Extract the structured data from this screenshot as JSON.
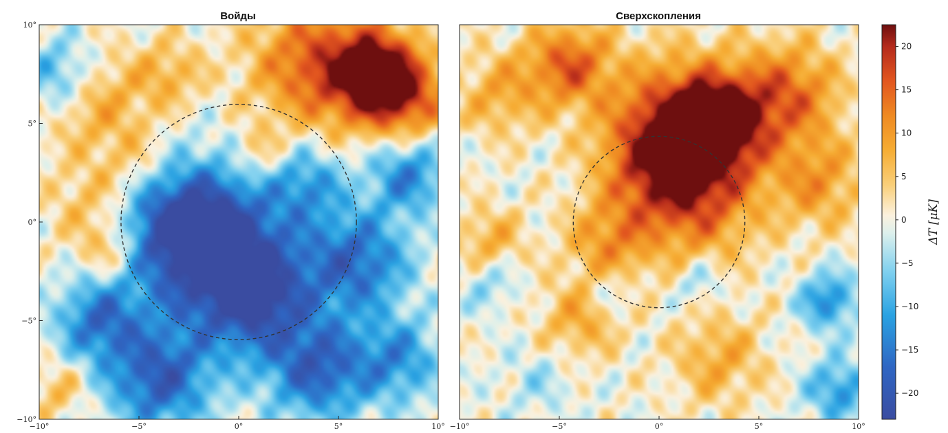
{
  "chart_data": [
    {
      "type": "heatmap",
      "title": "Войды",
      "x_ticks": [
        "−10°",
        "−5°",
        "0°",
        "5°",
        "10°"
      ],
      "y_ticks": [
        "10°",
        "5°",
        "0°",
        "−5°",
        "−10°"
      ],
      "x_range": [
        -10,
        10
      ],
      "y_range": [
        -10,
        10
      ],
      "circle_radius_deg": 5.9,
      "temperature_features": [
        {
          "x": 7,
          "y": 7.5,
          "dT": 22,
          "sigma": 1.5
        },
        {
          "x": 4,
          "y": 8,
          "dT": 16,
          "sigma": 2.3
        },
        {
          "x": 8.5,
          "y": 6,
          "dT": 12,
          "sigma": 1.6
        },
        {
          "x": -7,
          "y": 6,
          "dT": 8,
          "sigma": 1.8
        },
        {
          "x": -3.5,
          "y": 7.5,
          "dT": 7,
          "sigma": 1.2
        },
        {
          "x": -7.5,
          "y": 1,
          "dT": 6,
          "sigma": 1.5
        },
        {
          "x": -6.5,
          "y": -1.5,
          "dT": 8,
          "sigma": 1.1
        },
        {
          "x": 1,
          "y": 3.5,
          "dT": 6,
          "sigma": 1.0
        },
        {
          "x": -5,
          "y": 3,
          "dT": 5,
          "sigma": 1.3
        },
        {
          "x": -9,
          "y": -8.5,
          "dT": 6,
          "sigma": 1.0
        },
        {
          "x": -1,
          "y": -1.5,
          "dT": -22,
          "sigma": 2.8
        },
        {
          "x": -3,
          "y": 0,
          "dT": -14,
          "sigma": 2.0
        },
        {
          "x": 1,
          "y": -4,
          "dT": -14,
          "sigma": 2.0
        },
        {
          "x": -4,
          "y": -8,
          "dT": -18,
          "sigma": 1.8
        },
        {
          "x": 6,
          "y": -2,
          "dT": -16,
          "sigma": 1.8
        },
        {
          "x": 4,
          "y": -7.5,
          "dT": -17,
          "sigma": 1.8
        },
        {
          "x": 8.5,
          "y": 2.5,
          "dT": -14,
          "sigma": 1.4
        },
        {
          "x": -7,
          "y": -5,
          "dT": -15,
          "sigma": 1.5
        },
        {
          "x": 8,
          "y": -7,
          "dT": -12,
          "sigma": 1.5
        },
        {
          "x": 3.5,
          "y": 2,
          "dT": -10,
          "sigma": 1.3
        },
        {
          "x": -9,
          "y": 7.5,
          "dT": -10,
          "sigma": 1.3
        }
      ]
    },
    {
      "type": "heatmap",
      "title": "Сверхскопления",
      "x_ticks": [
        "−10°",
        "−5°",
        "0°",
        "5°",
        "10°"
      ],
      "y_ticks": [],
      "x_range": [
        -10,
        10
      ],
      "y_range": [
        -10,
        10
      ],
      "circle_radius_deg": 4.3,
      "temperature_features": [
        {
          "x": 3,
          "y": 5,
          "dT": 21,
          "sigma": 1.6
        },
        {
          "x": 1,
          "y": 5,
          "dT": 16,
          "sigma": 2.4
        },
        {
          "x": -4.5,
          "y": 8,
          "dT": 15,
          "sigma": 1.5
        },
        {
          "x": 6.5,
          "y": 6.5,
          "dT": 14,
          "sigma": 1.8
        },
        {
          "x": 2,
          "y": 1,
          "dT": 12,
          "sigma": 2.2
        },
        {
          "x": 0,
          "y": 3,
          "dT": 12,
          "sigma": 2.0
        },
        {
          "x": -8,
          "y": 6.5,
          "dT": 8,
          "sigma": 1.5
        },
        {
          "x": -2.5,
          "y": -1,
          "dT": 10,
          "sigma": 1.5
        },
        {
          "x": -8.5,
          "y": -1,
          "dT": 8,
          "sigma": 1.2
        },
        {
          "x": -4,
          "y": -5,
          "dT": 8,
          "sigma": 1.4
        },
        {
          "x": 3,
          "y": -7,
          "dT": 8,
          "sigma": 1.6
        },
        {
          "x": 8,
          "y": 2,
          "dT": 10,
          "sigma": 1.6
        },
        {
          "x": 8.5,
          "y": -4,
          "dT": -13,
          "sigma": 1.0
        },
        {
          "x": 9,
          "y": -8.5,
          "dT": -12,
          "sigma": 1.1
        },
        {
          "x": 2,
          "y": -3,
          "dT": -6,
          "sigma": 0.8
        },
        {
          "x": -2.5,
          "y": -3.5,
          "dT": -5,
          "sigma": 0.8
        },
        {
          "x": -8.5,
          "y": -3,
          "dT": -6,
          "sigma": 1.0
        },
        {
          "x": -6,
          "y": -8,
          "dT": -4,
          "sigma": 1.2
        }
      ]
    }
  ],
  "colorbar": {
    "label": "ΔT [μK]",
    "range": [
      -23,
      22.5
    ],
    "ticks": [
      20,
      15,
      10,
      5,
      0,
      -5,
      -10,
      -15,
      -20
    ],
    "tick_labels": [
      "20",
      "15",
      "10",
      "5",
      "0",
      "−5",
      "−10",
      "−15",
      "−20"
    ],
    "colors": [
      {
        "v": -23,
        "c": "#3a4ca1"
      },
      {
        "v": -17,
        "c": "#2f66c3"
      },
      {
        "v": -11,
        "c": "#2aa2e2"
      },
      {
        "v": -6,
        "c": "#7fd0ef"
      },
      {
        "v": -1.5,
        "c": "#ddf0ec"
      },
      {
        "v": 0.5,
        "c": "#fbf1de"
      },
      {
        "v": 4,
        "c": "#f9cf7a"
      },
      {
        "v": 8,
        "c": "#f6ad34"
      },
      {
        "v": 12,
        "c": "#ef8a22"
      },
      {
        "v": 16,
        "c": "#e2561f"
      },
      {
        "v": 20,
        "c": "#b42a1c"
      },
      {
        "v": 22.5,
        "c": "#6e0f0f"
      }
    ]
  }
}
